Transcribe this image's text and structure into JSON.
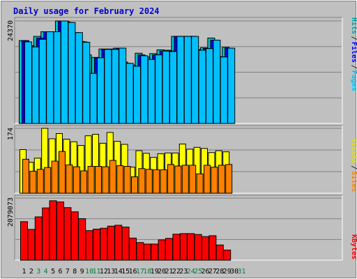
{
  "title": "Daily usage for February 2024",
  "colors": {
    "background": "#c0c0c0",
    "title": "#0000cc",
    "hits": "#00c0c0",
    "files": "#0000ff",
    "pages": "#00c0ff",
    "visits": "#ffff00",
    "sites": "#ff8000",
    "kbytes": "#ff0000",
    "weekend_day_label": "#008040",
    "weekday_label": "#000000"
  },
  "legends": {
    "top": [
      {
        "text": "Hits",
        "color": "#00a0a0"
      },
      {
        "text": "Files",
        "color": "#0000ff"
      },
      {
        "text": "Pages",
        "color": "#00c0ff"
      }
    ],
    "middle": [
      {
        "text": "Visits",
        "color": "#e0e000"
      },
      {
        "text": "Sites",
        "color": "#ff8000"
      }
    ],
    "bottom": [
      {
        "text": "KBytes",
        "color": "#ff0000"
      }
    ]
  },
  "chart_data": [
    {
      "type": "bar",
      "panel": "hits-files-pages",
      "max_label": "24370",
      "ylim": [
        0,
        24370
      ],
      "categories": [
        "1",
        "2",
        "3",
        "4",
        "5",
        "6",
        "7",
        "8",
        "9",
        "10",
        "11",
        "12",
        "13",
        "14",
        "15",
        "16",
        "17",
        "18",
        "19",
        "20",
        "21",
        "22",
        "23",
        "24",
        "25",
        "26",
        "27",
        "28",
        "29",
        "30",
        "31"
      ],
      "series": [
        {
          "name": "Hits",
          "values": [
            19700,
            18500,
            20700,
            21800,
            21800,
            24370,
            24200,
            21600,
            19500,
            16300,
            15700,
            17700,
            17700,
            17900,
            14600,
            13900,
            16700,
            15800,
            16600,
            17500,
            17400,
            20700,
            20700,
            20700,
            17600,
            18000,
            20300,
            15900,
            18100,
            0,
            0
          ]
        },
        {
          "name": "Files",
          "values": [
            19700,
            18200,
            20300,
            21800,
            21800,
            24370,
            24000,
            21600,
            19400,
            11900,
            15600,
            17600,
            17600,
            17900,
            14300,
            13600,
            16300,
            15200,
            16300,
            17200,
            17200,
            20700,
            20700,
            20700,
            17400,
            17800,
            19800,
            15800,
            17900,
            0,
            0
          ]
        },
        {
          "name": "Pages",
          "values": [
            19400,
            18200,
            20000,
            21800,
            21800,
            24370,
            24000,
            21600,
            19300,
            11900,
            15600,
            17600,
            17600,
            17900,
            14300,
            13600,
            16100,
            15200,
            16300,
            17200,
            17100,
            20700,
            20700,
            20700,
            17400,
            17800,
            19800,
            15800,
            17900,
            0,
            0
          ]
        }
      ]
    },
    {
      "type": "bar",
      "panel": "visits-sites",
      "max_label": "174",
      "ylim": [
        0,
        174
      ],
      "categories": [
        "1",
        "2",
        "3",
        "4",
        "5",
        "6",
        "7",
        "8",
        "9",
        "10",
        "11",
        "12",
        "13",
        "14",
        "15",
        "16",
        "17",
        "18",
        "19",
        "20",
        "21",
        "22",
        "23",
        "24",
        "25",
        "26",
        "27",
        "28",
        "29",
        "30",
        "31"
      ],
      "series": [
        {
          "name": "Visits",
          "values": [
            117,
            83,
            94,
            174,
            146,
            160,
            145,
            138,
            128,
            154,
            158,
            134,
            163,
            139,
            131,
            70,
            114,
            107,
            96,
            106,
            108,
            108,
            132,
            118,
            123,
            120,
            109,
            114,
            111,
            0,
            0
          ]
        },
        {
          "name": "Sites",
          "values": [
            91,
            59,
            64,
            69,
            86,
            112,
            76,
            71,
            60,
            72,
            72,
            71,
            88,
            74,
            72,
            44,
            66,
            64,
            63,
            63,
            77,
            73,
            75,
            75,
            52,
            75,
            70,
            75,
            77,
            0,
            0
          ]
        }
      ]
    },
    {
      "type": "bar",
      "panel": "kbytes",
      "max_label": "2079073",
      "ylim": [
        0,
        2079073
      ],
      "categories": [
        "1",
        "2",
        "3",
        "4",
        "5",
        "6",
        "7",
        "8",
        "9",
        "10",
        "11",
        "12",
        "13",
        "14",
        "15",
        "16",
        "17",
        "18",
        "19",
        "20",
        "21",
        "22",
        "23",
        "24",
        "25",
        "26",
        "27",
        "28",
        "29",
        "30",
        "31"
      ],
      "series": [
        {
          "name": "KBytes",
          "values": [
            1290000,
            1030000,
            1450000,
            1750000,
            1990000,
            1950000,
            1760000,
            1620000,
            1390000,
            990000,
            1040000,
            1070000,
            1140000,
            1170000,
            1110000,
            740000,
            590000,
            540000,
            540000,
            680000,
            730000,
            870000,
            890000,
            890000,
            860000,
            790000,
            820000,
            510000,
            340000,
            0,
            0
          ]
        }
      ]
    }
  ]
}
